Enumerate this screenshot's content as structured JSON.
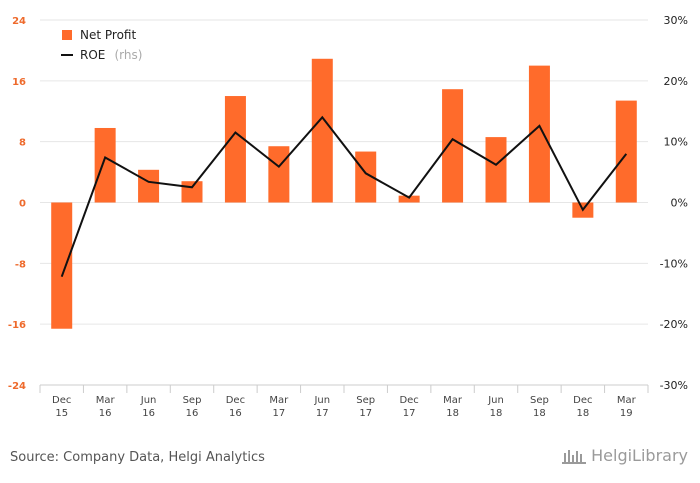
{
  "chart_data": {
    "type": "bar",
    "categories": [
      [
        "Dec",
        "15"
      ],
      [
        "Mar",
        "16"
      ],
      [
        "Jun",
        "16"
      ],
      [
        "Sep",
        "16"
      ],
      [
        "Dec",
        "16"
      ],
      [
        "Mar",
        "17"
      ],
      [
        "Jun",
        "17"
      ],
      [
        "Sep",
        "17"
      ],
      [
        "Dec",
        "17"
      ],
      [
        "Mar",
        "18"
      ],
      [
        "Jun",
        "18"
      ],
      [
        "Sep",
        "18"
      ],
      [
        "Dec",
        "18"
      ],
      [
        "Mar",
        "19"
      ]
    ],
    "series": [
      {
        "name": "Net Profit",
        "type": "bar",
        "axis": "left",
        "color": "#ff6b2b",
        "values": [
          -16.6,
          9.8,
          4.3,
          2.8,
          14.0,
          7.4,
          18.9,
          6.7,
          0.9,
          14.9,
          8.6,
          18.0,
          -2.0,
          13.4
        ]
      },
      {
        "name": "ROE",
        "name_suffix": "(rhs)",
        "type": "line",
        "axis": "right",
        "color": "#111111",
        "values": [
          -12.2,
          7.4,
          3.4,
          2.5,
          11.5,
          5.9,
          14.0,
          4.8,
          0.8,
          10.4,
          6.2,
          12.6,
          -1.2,
          8.0
        ]
      }
    ],
    "yleft": {
      "min": -24,
      "max": 24,
      "ticks": [
        "24",
        "16",
        "8",
        "0",
        "-8",
        "-16",
        "-24"
      ],
      "tick_values": [
        24,
        16,
        8,
        0,
        -8,
        -16,
        -24
      ]
    },
    "yright": {
      "min": -30,
      "max": 30,
      "ticks": [
        "30%",
        "20%",
        "10%",
        "0%",
        "-10%",
        "-20%",
        "-30%"
      ],
      "tick_values": [
        30,
        20,
        10,
        0,
        -10,
        -20,
        -30
      ]
    },
    "grid": true,
    "legend": "top-left"
  },
  "footer": {
    "source": "Source: Company Data, Helgi Analytics",
    "logo": "HelgiLibrary"
  },
  "colors": {
    "bar": "#ff6b2b",
    "line": "#111111",
    "grid": "#e6e6e6",
    "left_tick": "#ee6a2c"
  }
}
